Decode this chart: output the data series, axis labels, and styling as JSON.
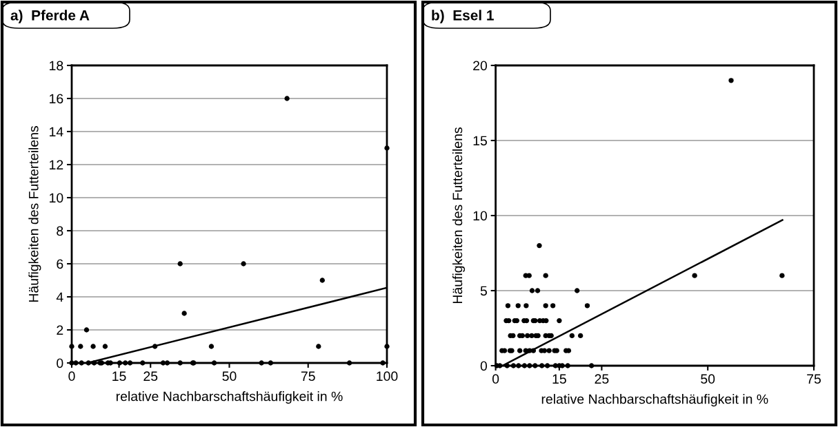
{
  "chart_data": [
    {
      "type": "scatter",
      "title": "a)  Pferde A",
      "xlabel": "relative Nachbarschaftshäufigkeit in %",
      "ylabel": "Häufigkeiten des Futterteilens",
      "xlim": [
        0,
        100
      ],
      "ylim": [
        0,
        18
      ],
      "xticks": [
        0,
        15,
        25,
        50,
        75,
        100
      ],
      "yticks": [
        0,
        2,
        4,
        6,
        8,
        10,
        12,
        14,
        16,
        18
      ],
      "grid": "y",
      "marker": "circle",
      "legend": false,
      "series": [
        {
          "color": "#000000",
          "x": [
            0,
            2.8,
            6.8,
            10.6,
            26.4,
            44.3,
            78.3,
            100,
            4.7,
            34.4,
            54.5,
            35.7,
            79.5,
            68.3,
            100,
            0,
            1.3,
            3.1,
            5.3,
            7.1,
            9,
            9.5,
            11.5,
            12.3,
            15.2,
            17,
            18.5,
            22.5,
            29,
            30.3,
            34.4,
            38.4,
            38.7,
            45.2,
            60.2,
            63.1,
            88.1,
            98.7
          ],
          "values": [
            1,
            1,
            1,
            1,
            1,
            1,
            1,
            1,
            2,
            6,
            6,
            3,
            5,
            16,
            13,
            0,
            0,
            0,
            0,
            0,
            0,
            0,
            0,
            0,
            0,
            0,
            0,
            0,
            0,
            0,
            0,
            0,
            0,
            0,
            0,
            0,
            0,
            0
          ]
        },
        {
          "type": "line",
          "color": "#000000",
          "marker": "none",
          "x": [
            5,
            100
          ],
          "values": [
            0,
            4.55
          ]
        }
      ]
    },
    {
      "type": "scatter",
      "title": "b)  Esel 1",
      "xlabel": "relative Nachbarschaftshäufigkeit in %",
      "ylabel": "Häufigkeiten des Futterteilens",
      "xlim": [
        0,
        75
      ],
      "ylim": [
        0,
        20
      ],
      "xticks": [
        0,
        15,
        25,
        50,
        75
      ],
      "yticks": [
        0,
        5,
        10,
        15,
        20
      ],
      "grid": "y",
      "marker": "circle",
      "legend": false,
      "series": [
        {
          "color": "#000000",
          "x": [
            10.3,
            7.1,
            7.9,
            11.8,
            46.9,
            67.5,
            8.6,
            9.9,
            19.2,
            55.5,
            2.9,
            5.3,
            7.2,
            11.8,
            13.5,
            21.6,
            2.5,
            3.1,
            4.5,
            5.0,
            6.7,
            7.3,
            8.9,
            9.3,
            10.4,
            11.2,
            11.9,
            15.0,
            3.5,
            4.1,
            5.7,
            6.3,
            7.5,
            8.5,
            9.5,
            10.0,
            11.8,
            12.6,
            13.1,
            18.0,
            20.0,
            1.5,
            2.1,
            3.4,
            3.8,
            5.7,
            7.1,
            8.0,
            8.9,
            10.8,
            11.5,
            12.6,
            13.9,
            14.4,
            16.6,
            17.2,
            0.3,
            1.0,
            2.7,
            4.2,
            5.4,
            6.8,
            8.0,
            9.3,
            10.9,
            12.2,
            14.1,
            15.0,
            15.7,
            17.0,
            22.6
          ],
          "values": [
            8,
            6,
            6,
            6,
            6,
            6,
            5,
            5,
            5,
            19,
            4,
            4,
            4,
            4,
            4,
            4,
            3,
            3,
            3,
            3,
            3,
            3,
            3,
            3,
            3,
            3,
            3,
            3,
            2,
            2,
            2,
            2,
            2,
            2,
            2,
            2,
            2,
            2,
            2,
            2,
            2,
            1,
            1,
            1,
            1,
            1,
            1,
            1,
            1,
            1,
            1,
            1,
            1,
            1,
            1,
            1,
            0,
            0,
            0,
            0,
            0,
            0,
            0,
            0,
            0,
            0,
            0,
            0,
            0,
            0,
            0
          ]
        },
        {
          "type": "line",
          "color": "#000000",
          "marker": "none",
          "x": [
            1.6,
            67.6
          ],
          "values": [
            0,
            9.7
          ]
        }
      ]
    }
  ]
}
